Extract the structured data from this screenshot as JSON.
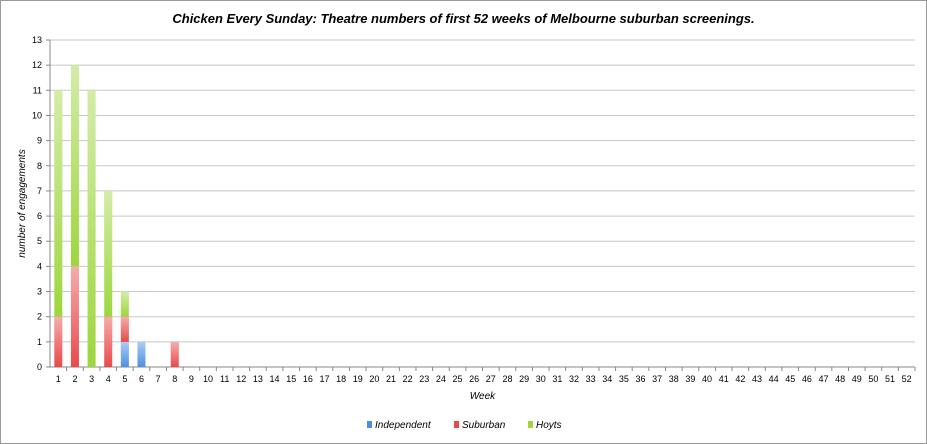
{
  "chart_data": {
    "type": "bar",
    "stacked": true,
    "title": "Chicken Every Sunday: Theatre numbers of first 52 weeks of Melbourne suburban screenings.",
    "xlabel": "Week",
    "ylabel": "number of engagements",
    "ylim": [
      0,
      13
    ],
    "grid": true,
    "legend": "bottom",
    "categories": [
      "1",
      "2",
      "3",
      "4",
      "5",
      "6",
      "7",
      "8",
      "9",
      "10",
      "11",
      "12",
      "13",
      "14",
      "15",
      "16",
      "17",
      "18",
      "19",
      "20",
      "21",
      "22",
      "23",
      "24",
      "25",
      "26",
      "27",
      "28",
      "29",
      "30",
      "31",
      "32",
      "33",
      "34",
      "35",
      "36",
      "37",
      "38",
      "39",
      "40",
      "41",
      "42",
      "43",
      "44",
      "45",
      "46",
      "47",
      "48",
      "49",
      "50",
      "51",
      "52"
    ],
    "series": [
      {
        "name": "Independent",
        "color": "#4a90e2",
        "values": [
          0,
          0,
          0,
          0,
          1,
          1,
          0,
          0,
          0,
          0,
          0,
          0,
          0,
          0,
          0,
          0,
          0,
          0,
          0,
          0,
          0,
          0,
          0,
          0,
          0,
          0,
          0,
          0,
          0,
          0,
          0,
          0,
          0,
          0,
          0,
          0,
          0,
          0,
          0,
          0,
          0,
          0,
          0,
          0,
          0,
          0,
          0,
          0,
          0,
          0,
          0,
          0
        ]
      },
      {
        "name": "Suburban",
        "color": "#e84a4a",
        "values": [
          2,
          4,
          0,
          2,
          1,
          0,
          0,
          1,
          0,
          0,
          0,
          0,
          0,
          0,
          0,
          0,
          0,
          0,
          0,
          0,
          0,
          0,
          0,
          0,
          0,
          0,
          0,
          0,
          0,
          0,
          0,
          0,
          0,
          0,
          0,
          0,
          0,
          0,
          0,
          0,
          0,
          0,
          0,
          0,
          0,
          0,
          0,
          0,
          0,
          0,
          0,
          0
        ]
      },
      {
        "name": "Hoyts",
        "color": "#9ed63e",
        "values": [
          9,
          8,
          11,
          5,
          1,
          0,
          0,
          0,
          0,
          0,
          0,
          0,
          0,
          0,
          0,
          0,
          0,
          0,
          0,
          0,
          0,
          0,
          0,
          0,
          0,
          0,
          0,
          0,
          0,
          0,
          0,
          0,
          0,
          0,
          0,
          0,
          0,
          0,
          0,
          0,
          0,
          0,
          0,
          0,
          0,
          0,
          0,
          0,
          0,
          0,
          0,
          0
        ]
      }
    ]
  }
}
